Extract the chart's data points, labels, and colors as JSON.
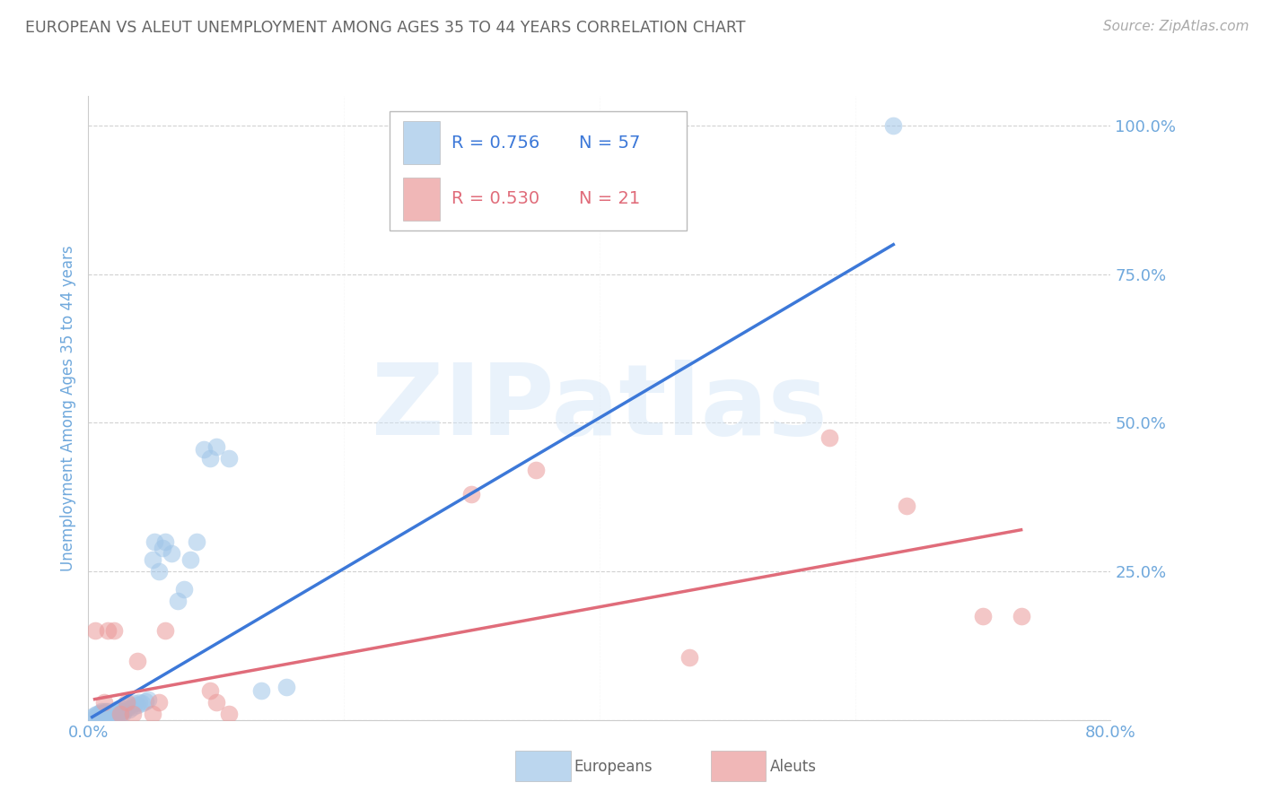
{
  "title": "EUROPEAN VS ALEUT UNEMPLOYMENT AMONG AGES 35 TO 44 YEARS CORRELATION CHART",
  "source": "Source: ZipAtlas.com",
  "ylabel": "Unemployment Among Ages 35 to 44 years",
  "xlim": [
    0.0,
    0.8
  ],
  "ylim": [
    0.0,
    1.05
  ],
  "yticks": [
    0.0,
    0.25,
    0.5,
    0.75,
    1.0
  ],
  "ytick_labels": [
    "",
    "25.0%",
    "50.0%",
    "75.0%",
    "100.0%"
  ],
  "xticks": [
    0.0,
    0.2,
    0.4,
    0.6,
    0.8
  ],
  "xtick_labels": [
    "0.0%",
    "",
    "",
    "",
    "80.0%"
  ],
  "european_color": "#9fc5e8",
  "aleut_color": "#ea9999",
  "trend_blue": "#3c78d8",
  "trend_pink": "#e06c7a",
  "axis_label_color": "#6fa8dc",
  "tick_label_color": "#6fa8dc",
  "title_color": "#666666",
  "legend_R_european": "R = 0.756",
  "legend_N_european": "N = 57",
  "legend_R_aleut": "R = 0.530",
  "legend_N_aleut": "N = 21",
  "background_color": "#ffffff",
  "europeans_x": [
    0.003,
    0.005,
    0.006,
    0.007,
    0.008,
    0.009,
    0.01,
    0.01,
    0.011,
    0.012,
    0.013,
    0.013,
    0.014,
    0.015,
    0.015,
    0.016,
    0.017,
    0.018,
    0.018,
    0.019,
    0.02,
    0.021,
    0.022,
    0.022,
    0.023,
    0.024,
    0.025,
    0.026,
    0.027,
    0.028,
    0.03,
    0.032,
    0.033,
    0.035,
    0.036,
    0.038,
    0.04,
    0.042,
    0.045,
    0.047,
    0.05,
    0.052,
    0.055,
    0.058,
    0.06,
    0.065,
    0.07,
    0.075,
    0.08,
    0.085,
    0.09,
    0.095,
    0.1,
    0.11,
    0.135,
    0.155,
    0.63
  ],
  "europeans_y": [
    0.005,
    0.008,
    0.006,
    0.01,
    0.008,
    0.012,
    0.01,
    0.015,
    0.008,
    0.012,
    0.01,
    0.015,
    0.008,
    0.01,
    0.015,
    0.008,
    0.01,
    0.008,
    0.012,
    0.01,
    0.008,
    0.01,
    0.012,
    0.018,
    0.015,
    0.012,
    0.01,
    0.015,
    0.012,
    0.018,
    0.02,
    0.018,
    0.025,
    0.022,
    0.028,
    0.025,
    0.03,
    0.028,
    0.032,
    0.035,
    0.27,
    0.3,
    0.25,
    0.29,
    0.3,
    0.28,
    0.2,
    0.22,
    0.27,
    0.3,
    0.455,
    0.44,
    0.46,
    0.44,
    0.05,
    0.055,
    1.0
  ],
  "aleuts_x": [
    0.005,
    0.012,
    0.015,
    0.02,
    0.025,
    0.03,
    0.035,
    0.038,
    0.05,
    0.055,
    0.06,
    0.095,
    0.1,
    0.11,
    0.3,
    0.35,
    0.47,
    0.58,
    0.64,
    0.7,
    0.73
  ],
  "aleuts_y": [
    0.15,
    0.03,
    0.15,
    0.15,
    0.01,
    0.03,
    0.01,
    0.1,
    0.01,
    0.03,
    0.15,
    0.05,
    0.03,
    0.01,
    0.38,
    0.42,
    0.105,
    0.475,
    0.36,
    0.175,
    0.175
  ],
  "eu_trend_x": [
    0.003,
    0.63
  ],
  "eu_trend_y": [
    0.005,
    0.8
  ],
  "al_trend_x": [
    0.005,
    0.73
  ],
  "al_trend_y": [
    0.035,
    0.32
  ]
}
